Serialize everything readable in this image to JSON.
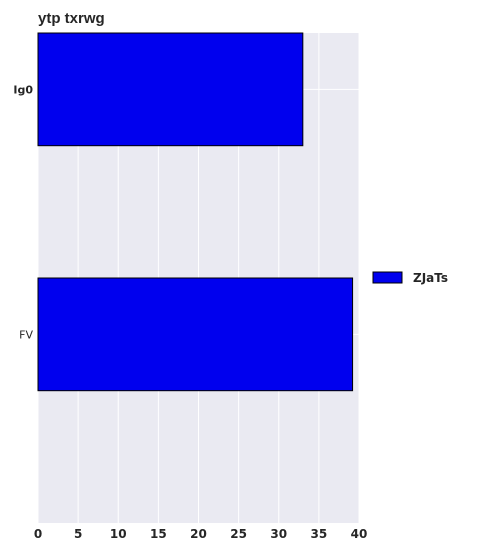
{
  "chart_data": {
    "type": "bar",
    "orientation": "horizontal",
    "title": "ytp txrwg",
    "xlabel": "",
    "ylabel": "",
    "categories": [
      "Ig0",
      "FV"
    ],
    "series": [
      {
        "name": "ZJaTs",
        "values": [
          33,
          39.2
        ],
        "color": "#0000ee"
      }
    ],
    "xlim": [
      0,
      40
    ],
    "xticks": [
      0,
      5,
      10,
      15,
      20,
      25,
      30,
      35,
      40
    ],
    "grid": true,
    "legend": "right",
    "colors": {
      "plot_background": "#eaeaf2",
      "grid": "#ffffff",
      "bar_edge": "#000000"
    }
  }
}
